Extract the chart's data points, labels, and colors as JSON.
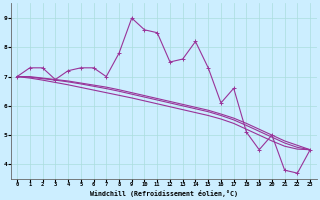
{
  "xlabel": "Windchill (Refroidissement éolien,°C)",
  "bg_color": "#cceeff",
  "line_color": "#993399",
  "grid_color": "#aadddd",
  "xlim": [
    -0.5,
    23.5
  ],
  "ylim": [
    3.5,
    9.5
  ],
  "yticks": [
    4,
    5,
    6,
    7,
    8,
    9
  ],
  "xticks": [
    0,
    1,
    2,
    3,
    4,
    5,
    6,
    7,
    8,
    9,
    10,
    11,
    12,
    13,
    14,
    15,
    16,
    17,
    18,
    19,
    20,
    21,
    22,
    23
  ],
  "series_main": [
    7.0,
    7.3,
    7.3,
    6.9,
    7.2,
    7.3,
    7.3,
    7.0,
    7.8,
    9.0,
    8.6,
    8.5,
    7.5,
    7.6,
    8.2,
    7.3,
    6.1,
    6.6,
    5.1,
    4.5,
    5.0,
    3.8,
    3.7,
    4.5
  ],
  "series_trend1": [
    7.0,
    7.0,
    6.95,
    6.9,
    6.85,
    6.78,
    6.71,
    6.64,
    6.55,
    6.45,
    6.35,
    6.25,
    6.15,
    6.05,
    5.95,
    5.85,
    5.72,
    5.58,
    5.4,
    5.2,
    5.0,
    4.8,
    4.65,
    4.5
  ],
  "series_trend2": [
    7.0,
    6.98,
    6.93,
    6.88,
    6.82,
    6.75,
    6.67,
    6.59,
    6.5,
    6.4,
    6.3,
    6.2,
    6.1,
    6.0,
    5.9,
    5.8,
    5.67,
    5.52,
    5.33,
    5.13,
    4.93,
    4.73,
    4.58,
    4.5
  ],
  "series_trend3": [
    7.0,
    6.95,
    6.88,
    6.8,
    6.72,
    6.63,
    6.54,
    6.45,
    6.36,
    6.27,
    6.17,
    6.07,
    5.97,
    5.87,
    5.77,
    5.67,
    5.55,
    5.4,
    5.2,
    5.0,
    4.8,
    4.62,
    4.52,
    4.5
  ]
}
